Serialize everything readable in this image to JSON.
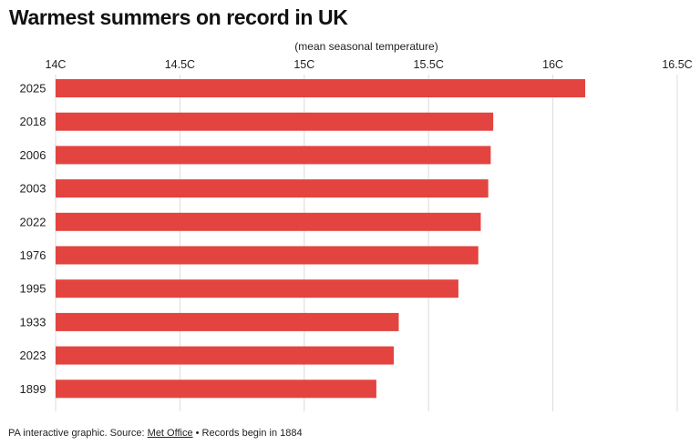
{
  "chart_data": {
    "type": "bar",
    "orientation": "horizontal",
    "title": "Warmest summers on record in UK",
    "xlabel": "(mean seasonal temperature)",
    "ylabel": "",
    "xlim": [
      14,
      16.5
    ],
    "ticks": [
      14,
      14.5,
      15,
      15.5,
      16,
      16.5
    ],
    "tick_labels": [
      "14C",
      "14.5C",
      "15C",
      "15.5C",
      "16C",
      "16.5C"
    ],
    "categories": [
      "2025",
      "2018",
      "2006",
      "2003",
      "2022",
      "1976",
      "1995",
      "1933",
      "2023",
      "1899"
    ],
    "values": [
      16.13,
      15.76,
      15.75,
      15.74,
      15.71,
      15.7,
      15.62,
      15.38,
      15.36,
      15.29
    ],
    "bar_color": "#e3443f",
    "grid": "vertical lines at ticks",
    "legend": "none"
  },
  "footer": {
    "prefix": "PA interactive graphic. Source: ",
    "source_link": "Met Office",
    "suffix": " • Records begin in 1884"
  }
}
